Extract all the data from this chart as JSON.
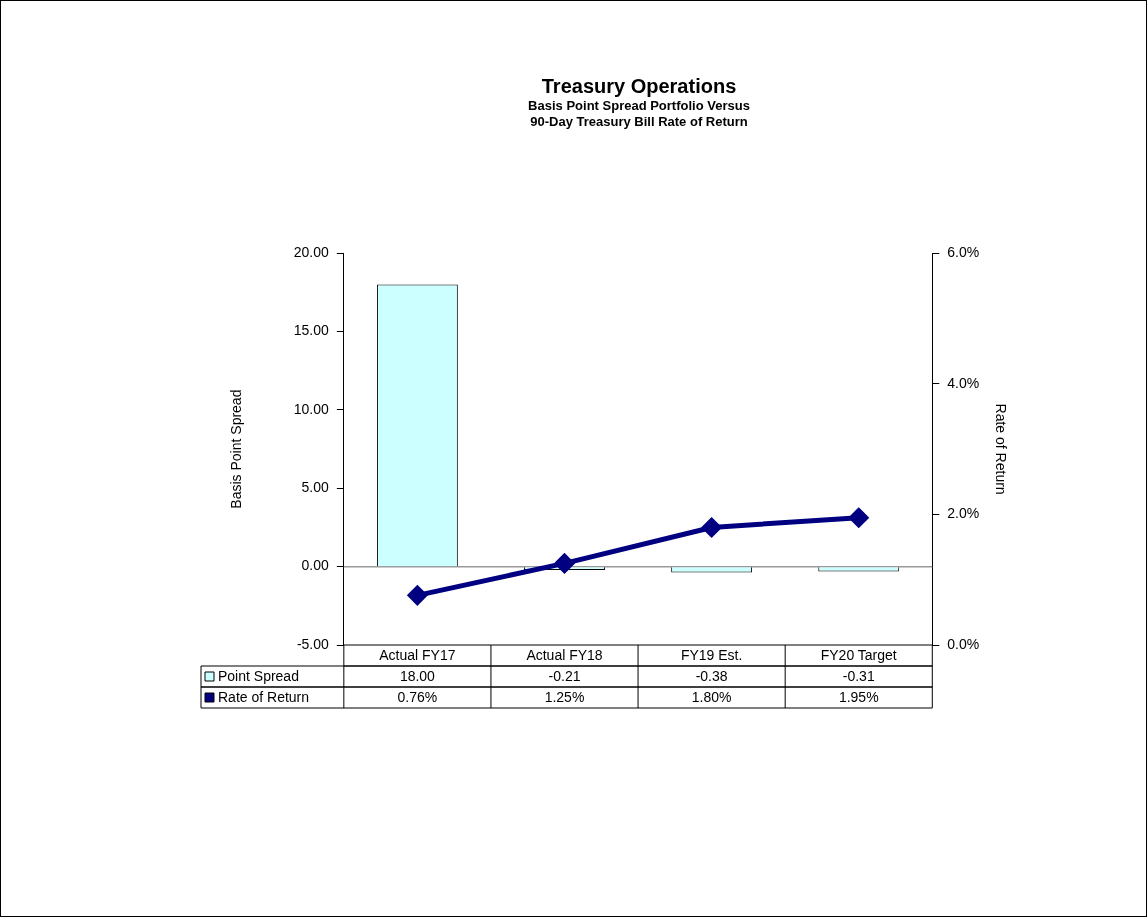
{
  "chart_data": {
    "type": "bar",
    "title": "Treasury Operations",
    "subtitle": "Basis Point Spread Portfolio Versus\n90-Day Treasury Bill Rate of Return",
    "ylabel": "Basis Point Spread",
    "y2label": "Rate of Return",
    "categories": [
      "Actual FY17",
      "Actual FY18",
      "FY19 Est.",
      "FY20 Target"
    ],
    "series": [
      {
        "name": "Point Spread",
        "color": "#ccffff",
        "values": [
          18,
          -0.21,
          -0.38,
          -0.31
        ],
        "value_labels": [
          "18.00",
          "-0.21",
          "-0.38",
          "-0.31"
        ]
      },
      {
        "name": "Rate of Return",
        "type": "line",
        "axis": "y2",
        "color": "#000080",
        "values": [
          0.76,
          1.25,
          1.8,
          1.95
        ],
        "value_labels": [
          "0.76%",
          "1.25%",
          "1.80%",
          "1.95%"
        ]
      }
    ],
    "ylim": [
      -5,
      20
    ],
    "yticks": [
      {
        "value": -5,
        "label": "-5.00"
      },
      {
        "value": 0,
        "label": "0.00"
      },
      {
        "value": 5,
        "label": "5.00"
      },
      {
        "value": 10,
        "label": "10.00"
      },
      {
        "value": 15,
        "label": "15.00"
      },
      {
        "value": 20,
        "label": "20.00"
      }
    ],
    "y2lim": [
      0,
      6
    ],
    "y2ticks": [
      {
        "value": 0,
        "label": "0.0%"
      },
      {
        "value": 2,
        "label": "2.0%"
      },
      {
        "value": 4,
        "label": "4.0%"
      },
      {
        "value": 6,
        "label": "6.0%"
      }
    ],
    "ref_lines": [
      {
        "axis": "y",
        "value": 0,
        "color": "#999999"
      }
    ],
    "marker": "diamond",
    "grid": false,
    "legend": "bottom"
  }
}
